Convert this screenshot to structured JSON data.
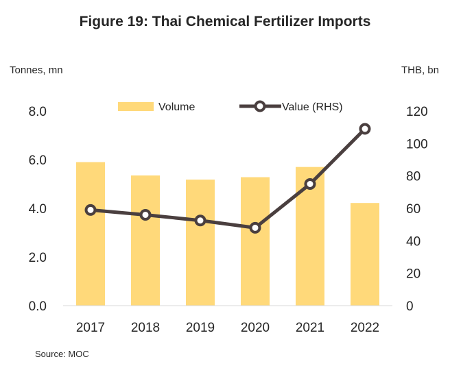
{
  "chart_data": {
    "type": "bar",
    "title": "Figure 19: Thai Chemical Fertilizer Imports",
    "ylabel_left": "Tonnes, mn",
    "ylabel_right": "THB, bn",
    "categories": [
      "2017",
      "2018",
      "2019",
      "2020",
      "2021",
      "2022"
    ],
    "series": [
      {
        "name": "Volume",
        "type": "bar",
        "axis": "left",
        "values": [
          5.9,
          5.35,
          5.18,
          5.28,
          5.7,
          4.22
        ],
        "color": "#FFD97A"
      },
      {
        "name": "Value (RHS)",
        "type": "line",
        "axis": "right",
        "values": [
          59,
          56,
          52.5,
          48,
          75,
          109
        ],
        "color": "#4A3F3F"
      }
    ],
    "ylim_left": [
      0,
      8
    ],
    "ylim_right": [
      0,
      120
    ],
    "yticks_left": [
      "0.0",
      "2.0",
      "4.0",
      "6.0",
      "8.0"
    ],
    "yticks_right": [
      "0",
      "20",
      "40",
      "60",
      "80",
      "100",
      "120"
    ],
    "grid": false,
    "legend_position": "top"
  },
  "source": "Source: MOC"
}
